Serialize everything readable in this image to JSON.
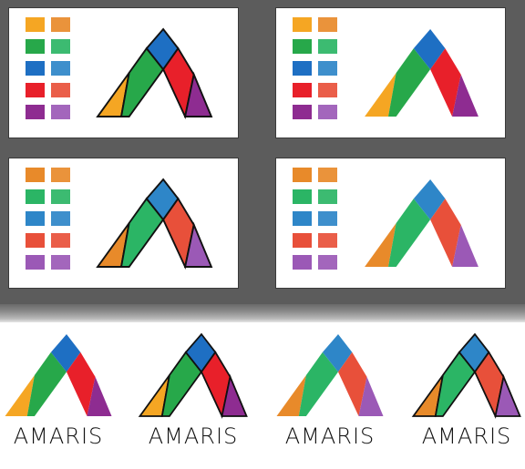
{
  "brand": {
    "name": "AMARIS"
  },
  "colors": {
    "orange": "#f5a623",
    "green": "#27a84a",
    "blue": "#1e6fc3",
    "red": "#e8202a",
    "purple": "#8e2c91",
    "orange_soft": "#e88a2a",
    "green_soft": "#2bb565",
    "blue_soft": "#2e86c8",
    "red_soft": "#e8503a",
    "purple_soft": "#9b59b6",
    "workspace": "#5c5c5c",
    "outline": "#111111"
  },
  "artboards": [
    {
      "id": "vivid-outlined",
      "palette": "vivid",
      "outlined": true
    },
    {
      "id": "vivid-plain",
      "palette": "vivid",
      "outlined": false
    },
    {
      "id": "soft-outlined",
      "palette": "soft",
      "outlined": true
    },
    {
      "id": "soft-plain",
      "palette": "soft",
      "outlined": false
    }
  ],
  "logo_variants": [
    {
      "id": "vivid-plain",
      "palette": "vivid",
      "outlined": false,
      "wordmark": "AMARIS"
    },
    {
      "id": "vivid-outlined",
      "palette": "vivid",
      "outlined": true,
      "wordmark": "AMARIS"
    },
    {
      "id": "soft-plain",
      "palette": "soft",
      "outlined": false,
      "wordmark": "AMARIS"
    },
    {
      "id": "soft-outlined",
      "palette": "soft",
      "outlined": true,
      "wordmark": "AMARIS"
    }
  ]
}
